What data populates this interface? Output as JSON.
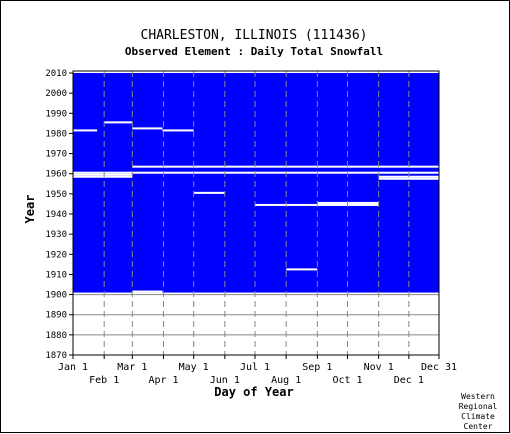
{
  "chart_data": {
    "type": "heatmap",
    "title": "CHARLESTON, ILLINOIS   (111436)",
    "subtitle": "Observed Element : Daily Total Snowfall",
    "xlabel": "Day of Year",
    "ylabel": "Year",
    "credit": [
      "Western",
      "Regional",
      "Climate",
      "Center"
    ],
    "x_ticks_top": [
      "Jan 1",
      "Mar 1",
      "May 1",
      "Jul 1",
      "Sep 1",
      "Nov 1",
      "Dec 31"
    ],
    "x_ticks_bottom": [
      "Feb 1",
      "Apr 1",
      "Jun 1",
      "Aug 1",
      "Oct 1",
      "Dec 1"
    ],
    "x_tick_days_top": [
      1,
      60,
      121,
      182,
      244,
      305,
      365
    ],
    "x_tick_days_bottom": [
      32,
      91,
      152,
      213,
      274,
      335
    ],
    "y_ticks": [
      1870,
      1880,
      1890,
      1900,
      1910,
      1920,
      1930,
      1940,
      1950,
      1960,
      1970,
      1980,
      1990,
      2000,
      2010
    ],
    "ylim": [
      1870,
      2011
    ],
    "xlim": [
      1,
      365
    ],
    "data_start_year": 1900,
    "grid": true,
    "colors": {
      "present": "#0000ff",
      "missing": "#ffffff",
      "grid": "#888888",
      "frame": "#000000"
    },
    "missing_spans": [
      {
        "year": 2010,
        "start": 1,
        "end": 365
      },
      {
        "year": 1963,
        "start": 60,
        "end": 365
      },
      {
        "year": 1960,
        "start": 1,
        "end": 365
      },
      {
        "year": 1959,
        "start": 1,
        "end": 60
      },
      {
        "year": 1958,
        "start": 1,
        "end": 60
      },
      {
        "year": 1958,
        "start": 305,
        "end": 365
      },
      {
        "year": 1957,
        "start": 305,
        "end": 365
      },
      {
        "year": 1944,
        "start": 182,
        "end": 305
      },
      {
        "year": 1945,
        "start": 244,
        "end": 305
      },
      {
        "year": 1981,
        "start": 1,
        "end": 25
      },
      {
        "year": 1981,
        "start": 90,
        "end": 121
      },
      {
        "year": 1982,
        "start": 60,
        "end": 90
      },
      {
        "year": 1985,
        "start": 32,
        "end": 60
      },
      {
        "year": 1950,
        "start": 121,
        "end": 152
      },
      {
        "year": 1912,
        "start": 213,
        "end": 244
      },
      {
        "year": 1901,
        "start": 60,
        "end": 90
      },
      {
        "year": 1900,
        "start": 1,
        "end": 365
      }
    ]
  }
}
